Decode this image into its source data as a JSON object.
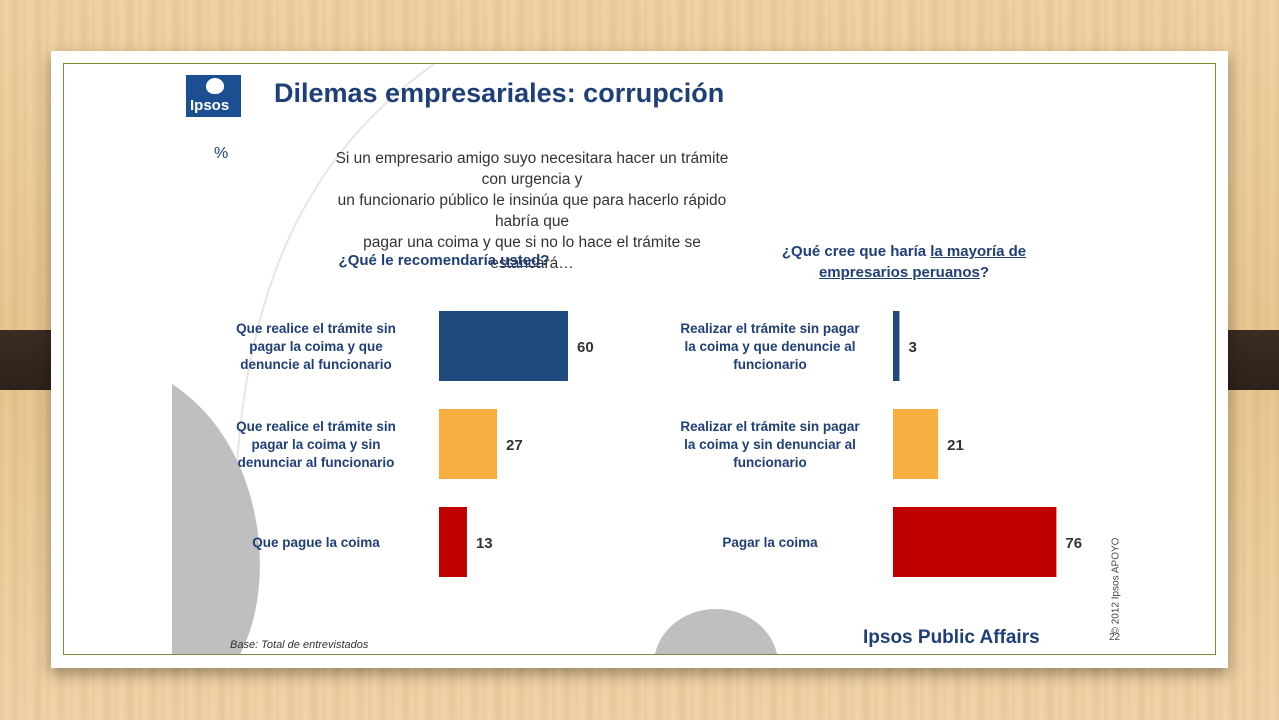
{
  "slide": {
    "logo_text": "Ipsos",
    "title": "Dilemas empresariales: corrupción",
    "unit": "%",
    "question_lines": [
      "Si un empresario amigo suyo necesitara hacer un trámite con  urgencia y",
      "un funcionario público le insinúa que para hacerlo rápido habría que",
      "pagar una coima y que si no lo hace el trámite se estancará…"
    ],
    "left_subtitle": {
      "pre": "¿Qué le recomendaría ",
      "underlined": "usted",
      "post": "?"
    },
    "right_subtitle": {
      "line1_pre": "¿Qué cree que haría ",
      "line1_underlined": "la mayoría de",
      "line2_underlined": "empresarios peruanos",
      "line2_post": "?"
    },
    "base_note": "Base: Total de entrevistados",
    "brand": "Ipsos Public Affairs",
    "copyright": "© 2012 Ipsos APOYO",
    "page_number": "22"
  },
  "colors": {
    "blue": "#1f4a7d",
    "orange": "#f9ae42",
    "red": "#c00000",
    "title_navy": "#1f3f77",
    "frame_border": "#7a8a36",
    "deco_gray": "#bfbfbf"
  },
  "chart_data": [
    {
      "type": "bar",
      "orientation": "horizontal",
      "unit": "%",
      "categories": [
        [
          "Que realice el trámite sin",
          "pagar la coima y que",
          "denuncie al funcionario"
        ],
        [
          "Que realice el trámite sin",
          "pagar la coima y sin",
          "denunciar al funcionario"
        ],
        [
          "Que pague la coima"
        ]
      ],
      "values": [
        60,
        27,
        13
      ],
      "bar_colors": [
        "#1f4a7d",
        "#f9ae42",
        "#c00000"
      ],
      "xlim": [
        0,
        100
      ]
    },
    {
      "type": "bar",
      "orientation": "horizontal",
      "unit": "%",
      "categories": [
        [
          "Realizar el trámite sin pagar",
          "la coima y que denuncie al",
          "funcionario"
        ],
        [
          "Realizar el trámite sin pagar",
          "la coima y sin denunciar al",
          "funcionario"
        ],
        [
          "Pagar la coima"
        ]
      ],
      "values": [
        3,
        21,
        76
      ],
      "bar_colors": [
        "#1f4a7d",
        "#f9ae42",
        "#c00000"
      ],
      "xlim": [
        0,
        100
      ]
    }
  ]
}
